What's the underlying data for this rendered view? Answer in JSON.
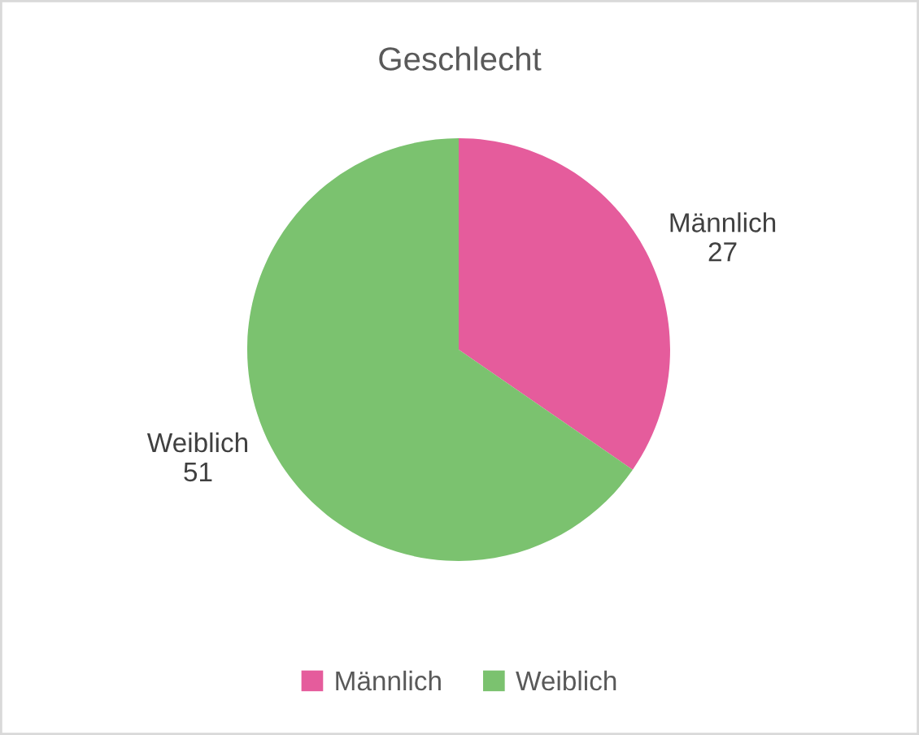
{
  "chart_data": {
    "type": "pie",
    "title": "Geschlecht",
    "categories": [
      "Männlich",
      "Weiblich"
    ],
    "values": [
      27,
      51
    ],
    "colors": [
      "#e55c9c",
      "#7bc26f"
    ],
    "data_labels": true,
    "legend": "bottom"
  }
}
